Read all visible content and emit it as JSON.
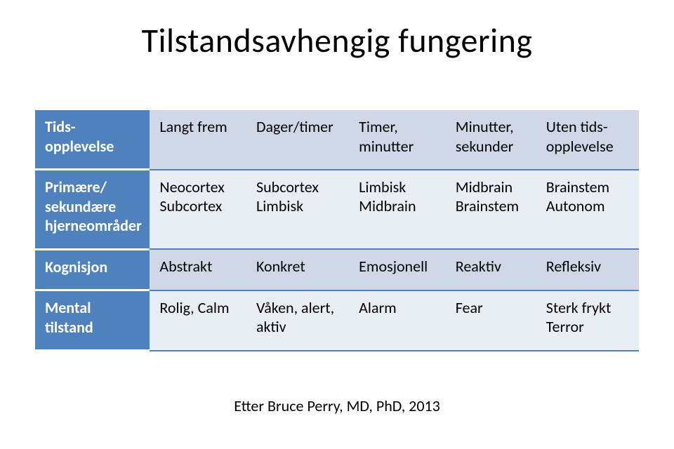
{
  "title": "Tilstandsavhengig fungering",
  "attribution": "Etter Bruce Perry, MD, PhD, 2013",
  "table": {
    "type": "table",
    "header_bg": "#4f81bd",
    "header_color": "#ffffff",
    "band_color_a": "#d0d8e8",
    "band_color_b": "#e9edf4",
    "border_color": "#4f81bd",
    "font_size": 22,
    "rows": [
      {
        "header": "Tids-opplevelse",
        "cells": [
          "Langt frem",
          "Dager/timer",
          "Timer, minutter",
          "Minutter, sekunder",
          "Uten tids-opplevelse"
        ]
      },
      {
        "header": "Primære/ sekundære hjerneområder",
        "cells": [
          "Neocortex Subcortex",
          "Subcortex Limbisk",
          "Limbisk Midbrain",
          "Midbrain Brainstem",
          "Brainstem Autonom"
        ]
      },
      {
        "header": "Kognisjon",
        "cells": [
          "Abstrakt",
          "Konkret",
          "Emosjonell",
          "Reaktiv",
          "Refleksiv"
        ]
      },
      {
        "header": "Mental tilstand",
        "cells": [
          "Rolig, Calm",
          "Våken, alert, aktiv",
          "Alarm",
          "Fear",
          "Sterk frykt Terror"
        ]
      }
    ]
  }
}
